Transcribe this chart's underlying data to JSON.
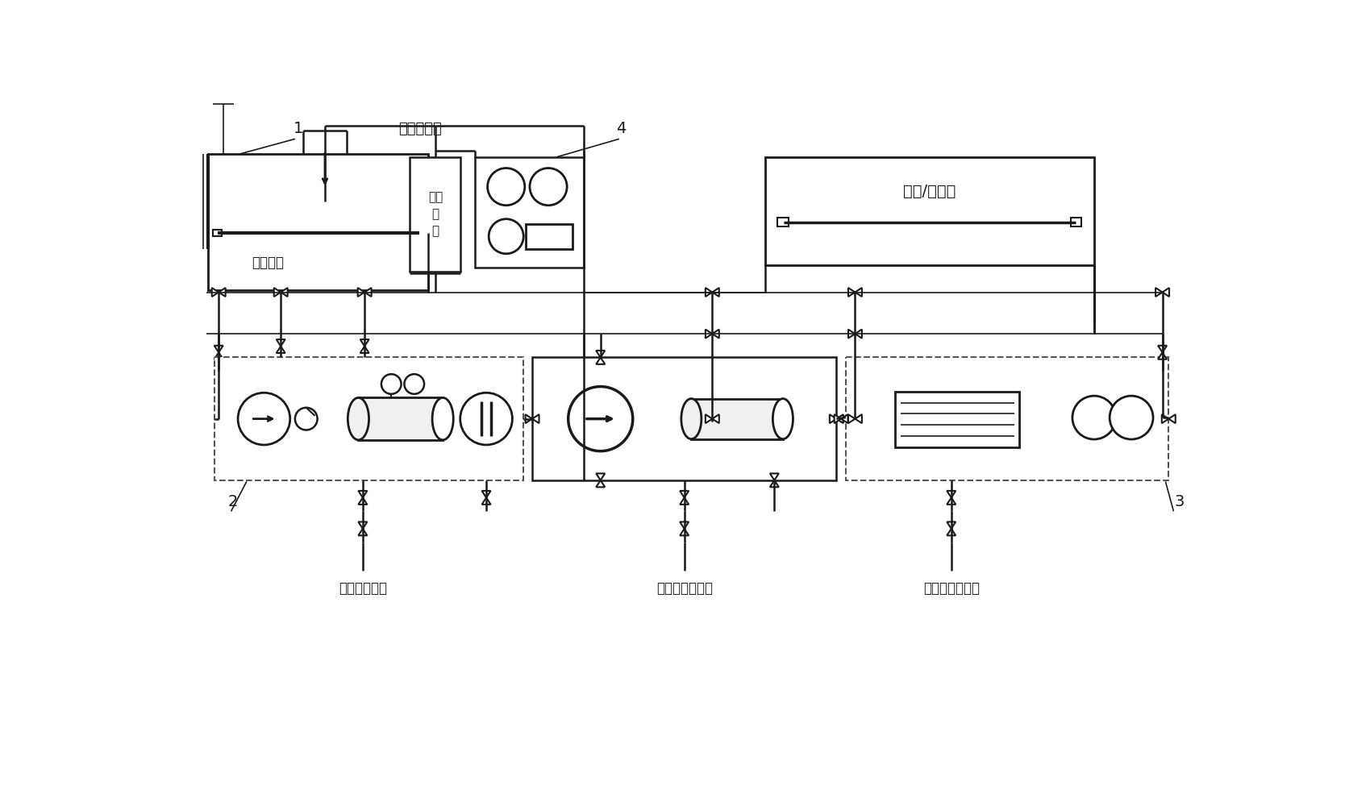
{
  "bg_color": "#ffffff",
  "lc": "#1a1a1a",
  "dc": "#555555",
  "text_inert": "惰性气注入",
  "text_tank": "待清洗羐",
  "text_oxy": "氧气\n检\n湋",
  "text_recover": "回收/供油羐",
  "text_water": "外部水源接口",
  "text_steam": "外部蔥汽源接口",
  "lw_main": 1.8,
  "lw_thick": 3.0,
  "lw_thin": 1.2
}
